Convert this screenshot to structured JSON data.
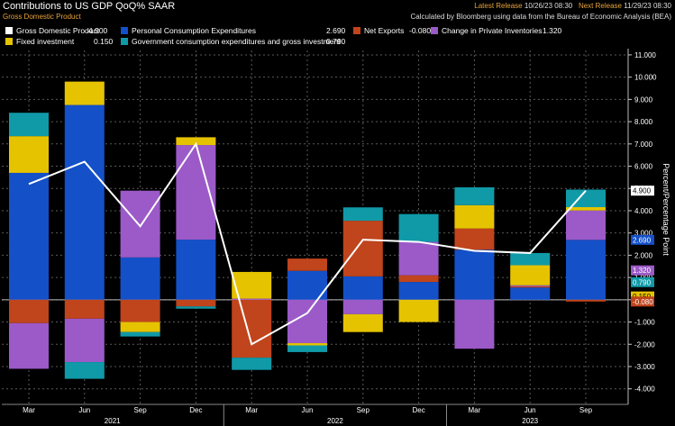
{
  "header": {
    "title": "Contributions to US GDP QoQ% SAAR",
    "subtitle": "Gross Domestic Product",
    "latest_release_label": "Latest Release",
    "latest_release": "10/26/23 08:30",
    "next_release_label": "Next Release",
    "next_release": "11/29/23 08:30",
    "credit": "Calculated by Bloomberg using data from the Bureau of Economic Analysis (BEA)"
  },
  "legend": [
    {
      "name": "Gross Domestic Product",
      "value": "4.900",
      "color": "#ffffff"
    },
    {
      "name": "Personal Consumption Expenditures",
      "value": "2.690",
      "color": "#1450c8"
    },
    {
      "name": "Net Exports",
      "value": "-0.080",
      "color": "#c0441c"
    },
    {
      "name": "Change in Private Inventories",
      "value": "1.320",
      "color": "#9b5ac8"
    },
    {
      "name": "Fixed investment",
      "value": "0.150",
      "color": "#e6c300"
    },
    {
      "name": "Government consumption expenditures and gross investment",
      "value": "0.790",
      "color": "#109aa8"
    }
  ],
  "chart_data": {
    "type": "bar",
    "stacked": true,
    "quarters": [
      "Mar",
      "Jun",
      "Sep",
      "Dec",
      "Mar",
      "Jun",
      "Sep",
      "Dec",
      "Mar",
      "Jun",
      "Sep"
    ],
    "years": [
      {
        "label": "2021",
        "from": 0,
        "to": 3
      },
      {
        "label": "2022",
        "from": 4,
        "to": 7
      },
      {
        "label": "2023",
        "from": 8,
        "to": 10
      }
    ],
    "series": [
      {
        "name": "Personal Consumption Expenditures",
        "color": "#1450c8",
        "values": [
          5.7,
          8.75,
          1.9,
          2.7,
          0.0,
          1.3,
          1.05,
          0.8,
          2.25,
          0.55,
          2.69
        ]
      },
      {
        "name": "Net Exports",
        "color": "#c0441c",
        "values": [
          -1.05,
          -0.85,
          -1.0,
          -0.3,
          -2.6,
          0.55,
          2.5,
          0.3,
          0.95,
          0.05,
          -0.08
        ]
      },
      {
        "name": "Change in Private Inventories",
        "color": "#9b5ac8",
        "values": [
          -2.05,
          -1.95,
          3.0,
          4.25,
          0.05,
          -1.95,
          -0.65,
          1.5,
          -2.2,
          0.05,
          1.32
        ]
      },
      {
        "name": "Fixed investment",
        "color": "#e6c300",
        "values": [
          1.65,
          1.05,
          -0.45,
          0.35,
          1.2,
          -0.1,
          -0.8,
          -1.0,
          1.05,
          0.9,
          0.15
        ]
      },
      {
        "name": "Government consumption expenditures and gross investment",
        "color": "#109aa8",
        "values": [
          1.05,
          -0.75,
          -0.2,
          -0.1,
          -0.55,
          -0.3,
          0.6,
          1.25,
          0.8,
          0.55,
          0.79
        ]
      }
    ],
    "line": {
      "name": "Gross Domestic Product",
      "color": "#ffffff",
      "values": [
        5.2,
        6.2,
        3.3,
        7.0,
        -2.0,
        -0.6,
        2.7,
        2.6,
        2.2,
        2.1,
        4.9
      ]
    },
    "ylim": [
      -4.7,
      11.2
    ],
    "yticks": [
      -4,
      -3,
      -2,
      -1,
      0,
      1,
      2,
      3,
      4,
      5,
      6,
      7,
      8,
      9,
      10,
      11
    ],
    "ytick_labels": [
      "-4.000",
      "-3.000",
      "-2.000",
      "-1.000",
      "0.000",
      "1.000",
      "2.000",
      "3.000",
      "4.000",
      "5.000",
      "6.000",
      "7.000",
      "8.000",
      "9.000",
      "10.000",
      "11.000"
    ],
    "ylabel": "Percent/Percentage Point",
    "value_tags": [
      {
        "value": 4.9,
        "text": "4.900",
        "bg": "#ffffff",
        "fg": "#000000"
      },
      {
        "value": 2.69,
        "text": "2.690",
        "bg": "#1450c8",
        "fg": "#ffffff"
      },
      {
        "value": 1.32,
        "text": "1.320",
        "bg": "#9b5ac8",
        "fg": "#ffffff"
      },
      {
        "value": 0.79,
        "text": "0.790",
        "bg": "#109aa8",
        "fg": "#ffffff"
      },
      {
        "value": 0.15,
        "text": "0.150",
        "bg": "#e6c300",
        "fg": "#000000"
      },
      {
        "value": -0.08,
        "text": "-0.080",
        "bg": "#c0441c",
        "fg": "#ffffff"
      }
    ]
  }
}
